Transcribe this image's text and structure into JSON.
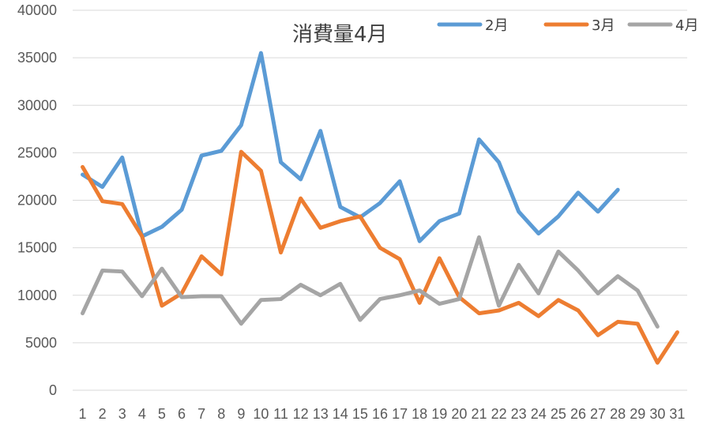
{
  "chart_data": {
    "type": "line",
    "title": "消費量4月",
    "xlabel": "",
    "ylabel": "",
    "categories": [
      "1",
      "2",
      "3",
      "4",
      "5",
      "6",
      "7",
      "8",
      "9",
      "10",
      "11",
      "12",
      "13",
      "14",
      "15",
      "16",
      "17",
      "18",
      "19",
      "20",
      "21",
      "22",
      "23",
      "24",
      "25",
      "26",
      "27",
      "28",
      "29",
      "30",
      "31"
    ],
    "ylim": [
      0,
      40000
    ],
    "yticks": [
      0,
      5000,
      10000,
      15000,
      20000,
      25000,
      30000,
      35000,
      40000
    ],
    "grid": true,
    "legend_position": "top-right",
    "series": [
      {
        "name": "2月",
        "color": "#5B9BD5",
        "values": [
          22700,
          21400,
          24500,
          16200,
          17200,
          19000,
          24700,
          25200,
          27900,
          35500,
          24000,
          22200,
          27300,
          19300,
          18200,
          19700,
          22000,
          15700,
          17800,
          18600,
          26400,
          24000,
          18800,
          16500,
          18300,
          20800,
          18800,
          21100,
          null,
          null,
          null
        ]
      },
      {
        "name": "3月",
        "color": "#ED7D31",
        "values": [
          23500,
          19900,
          19600,
          16200,
          8900,
          10200,
          14100,
          12200,
          25100,
          23100,
          14500,
          20200,
          17100,
          17800,
          18300,
          15000,
          13800,
          9200,
          13900,
          9800,
          8100,
          8400,
          9200,
          7800,
          9500,
          8400,
          5800,
          7200,
          7000,
          2900,
          6100
        ]
      },
      {
        "name": "4月",
        "color": "#A5A5A5",
        "values": [
          8100,
          12600,
          12500,
          9900,
          12800,
          9800,
          9900,
          9900,
          7000,
          9500,
          9600,
          11100,
          10000,
          11200,
          7400,
          9600,
          10000,
          10500,
          9100,
          9600,
          16100,
          8900,
          13200,
          10200,
          14600,
          12600,
          10200,
          12000,
          10500,
          6700,
          null
        ]
      }
    ]
  }
}
